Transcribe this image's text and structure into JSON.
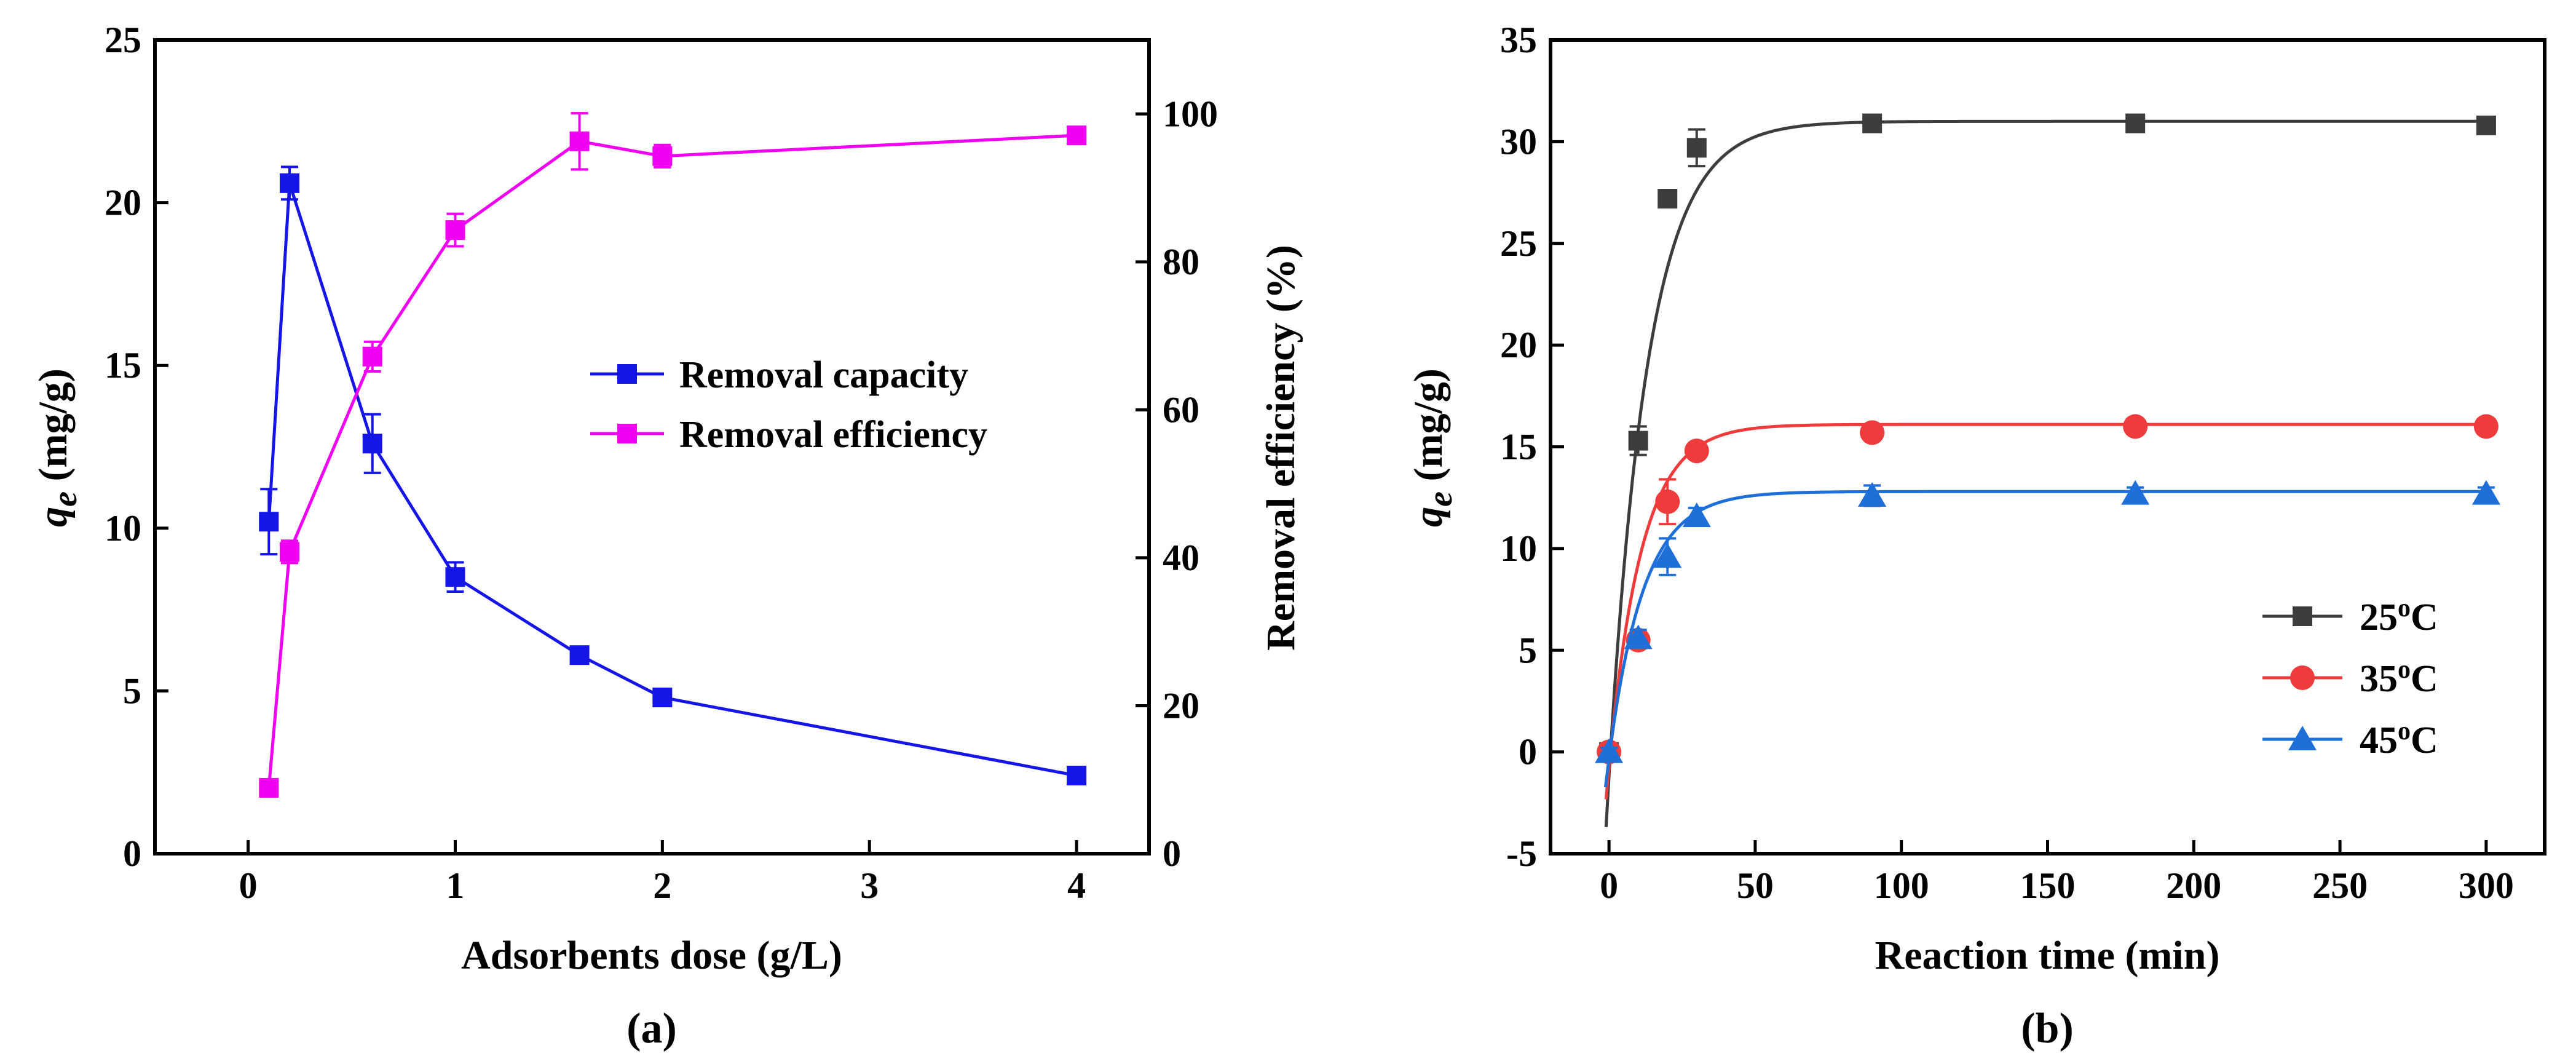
{
  "chart_data": [
    {
      "id": "a",
      "type": "line",
      "panel_label": "(a)",
      "xlabel": "Adsorbents dose (g/L)",
      "ylabel_main": "q",
      "ylabel_sub": "e",
      "ylabel_unit": " (mg/g)",
      "y2label": "Removal efficiency (%)",
      "xlim": [
        -0.45,
        4.35
      ],
      "ylim": [
        0,
        25
      ],
      "y2lim": [
        0,
        110
      ],
      "xticks": [
        0,
        1,
        2,
        3,
        4
      ],
      "yticks": [
        0,
        5,
        10,
        15,
        20,
        25
      ],
      "y2ticks": [
        0,
        20,
        40,
        60,
        80,
        100
      ],
      "legend_position": "center-right",
      "series": [
        {
          "name": "Removal capacity",
          "axis": "left",
          "color": "#1515e6",
          "marker": "square",
          "x": [
            0.1,
            0.2,
            0.6,
            1.0,
            1.6,
            2.0,
            4.0
          ],
          "y": [
            10.2,
            20.6,
            12.6,
            8.5,
            6.1,
            4.8,
            2.4
          ],
          "err": [
            1.0,
            0.5,
            0.9,
            0.45,
            0.2,
            0.15,
            0.2
          ]
        },
        {
          "name": "Removal efficiency",
          "axis": "right",
          "color": "#f000f0",
          "marker": "square",
          "x": [
            0.1,
            0.2,
            0.6,
            1.0,
            1.6,
            2.0,
            4.0
          ],
          "y": [
            8.9,
            40.8,
            67.2,
            84.3,
            96.3,
            94.3,
            97.1
          ],
          "err": [
            1.0,
            1.5,
            2.0,
            2.2,
            3.8,
            1.5,
            0.9
          ]
        }
      ]
    },
    {
      "id": "b",
      "type": "scatter",
      "panel_label": "(b)",
      "xlabel": "Reaction time (min)",
      "ylabel_main": "q",
      "ylabel_sub": "e",
      "ylabel_unit": " (mg/g)",
      "xlim": [
        -20,
        320
      ],
      "ylim": [
        -5,
        35
      ],
      "xticks": [
        0,
        50,
        100,
        150,
        200,
        250,
        300
      ],
      "yticks": [
        -5,
        0,
        5,
        10,
        15,
        20,
        25,
        30,
        35
      ],
      "legend_position": "bottom-right",
      "series": [
        {
          "name": "25",
          "degree": "o",
          "unit": "C",
          "color": "#3d3d3d",
          "marker": "square",
          "x": [
            0,
            10,
            20,
            30,
            90,
            180,
            300
          ],
          "y": [
            0,
            15.3,
            27.2,
            29.7,
            30.9,
            30.9,
            30.8
          ],
          "err": [
            0.2,
            0.7,
            0.4,
            0.9,
            0.25,
            0.4,
            0.3
          ],
          "fit": {
            "qe": 31.0,
            "k": 0.075,
            "t0": -1.0
          }
        },
        {
          "name": "35",
          "degree": "o",
          "unit": "C",
          "color": "#ee3b3b",
          "marker": "circle",
          "x": [
            0,
            10,
            20,
            30,
            90,
            180,
            300
          ],
          "y": [
            0,
            5.5,
            12.3,
            14.8,
            15.7,
            16.0,
            16.0
          ],
          "err": [
            0.2,
            0.4,
            1.1,
            0.3,
            0.3,
            0.35,
            0.25
          ],
          "fit": {
            "qe": 16.1,
            "k": 0.09,
            "t0": -1.0
          }
        },
        {
          "name": "45",
          "degree": "o",
          "unit": "C",
          "color": "#1f6fd8",
          "marker": "triangle",
          "x": [
            0,
            10,
            20,
            30,
            90,
            180,
            300
          ],
          "y": [
            0,
            5.6,
            9.6,
            11.6,
            12.6,
            12.7,
            12.7
          ],
          "err": [
            0.2,
            0.4,
            0.9,
            0.4,
            0.5,
            0.3,
            0.3
          ],
          "fit": {
            "qe": 12.8,
            "k": 0.085,
            "t0": -1.2
          }
        }
      ]
    }
  ]
}
